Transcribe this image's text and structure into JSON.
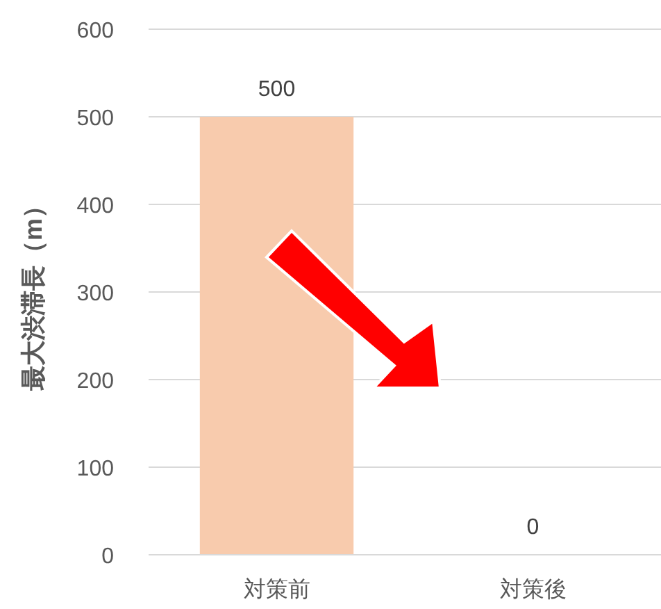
{
  "chart_data": {
    "type": "bar",
    "ylabel": "最大渋滞長（m）",
    "categories": [
      "対策前",
      "対策後"
    ],
    "series": [
      {
        "color": "#f8cbad",
        "values": [
          500,
          0
        ]
      }
    ],
    "ylim": [
      0,
      600
    ],
    "yticks": [
      0,
      100,
      200,
      300,
      400,
      500,
      600
    ],
    "grid": "y",
    "data_labels": true
  }
}
